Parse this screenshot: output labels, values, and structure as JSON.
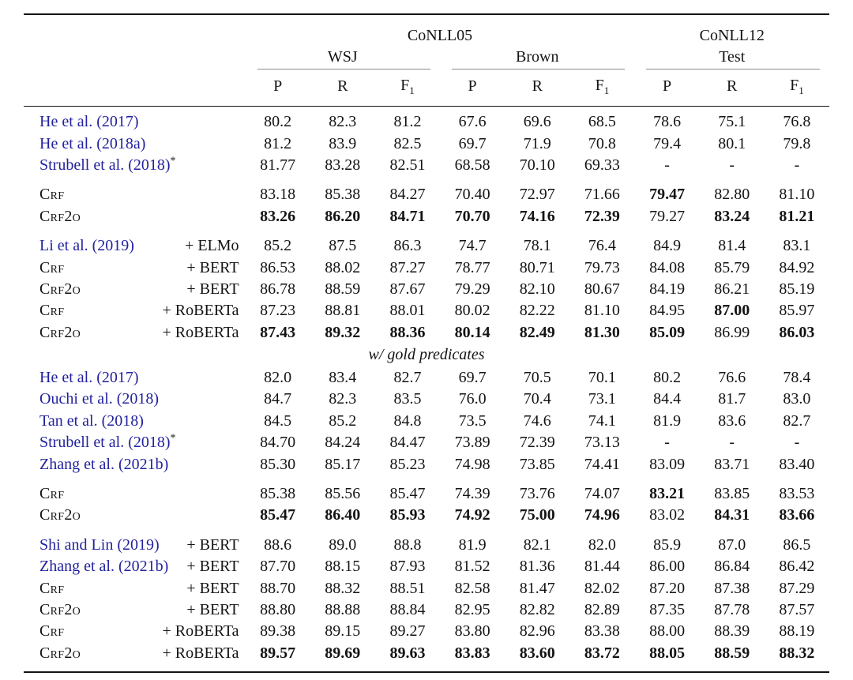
{
  "table": {
    "datasets": [
      "CoNLL05",
      "CoNLL12"
    ],
    "splits": [
      "WSJ",
      "Brown",
      "Test"
    ],
    "metrics": {
      "p": "P",
      "r": "R",
      "f": "F",
      "f_sub": "1"
    },
    "mid_header_label": "w/ gold predicates",
    "colors": {
      "citation_blue": "#22229f",
      "rule_black": "#141414",
      "cmidrule_gray": "#8c8c8c"
    },
    "rows": [
      {
        "kind": "data",
        "cite": "He et al. (2017)",
        "v": [
          "80.2",
          "82.3",
          "81.2",
          "67.6",
          "69.6",
          "68.5",
          "78.6",
          "75.1",
          "76.8"
        ]
      },
      {
        "kind": "data",
        "cite": "He et al. (2018a)",
        "v": [
          "81.2",
          "83.9",
          "82.5",
          "69.7",
          "71.9",
          "70.8",
          "79.4",
          "80.1",
          "79.8"
        ]
      },
      {
        "kind": "data",
        "cite": "Strubell et al. (2018)",
        "sup": "*",
        "v": [
          "81.77",
          "83.28",
          "82.51",
          "68.58",
          "70.10",
          "69.33",
          "-",
          "-",
          "-"
        ]
      },
      {
        "kind": "data",
        "gap": true,
        "model": "Crf",
        "v": [
          "83.18",
          "85.38",
          "84.27",
          "70.40",
          "72.97",
          "71.66",
          "79.47",
          "82.80",
          "81.10"
        ],
        "b": [
          0,
          0,
          0,
          0,
          0,
          0,
          1,
          0,
          0
        ]
      },
      {
        "kind": "data",
        "model": "Crf2o",
        "v": [
          "83.26",
          "86.20",
          "84.71",
          "70.70",
          "74.16",
          "72.39",
          "79.27",
          "83.24",
          "81.21"
        ],
        "b": [
          1,
          1,
          1,
          1,
          1,
          1,
          0,
          1,
          1
        ]
      },
      {
        "kind": "data",
        "gap": true,
        "cite": "Li et al. (2019)",
        "variant": "+ ELMo",
        "v": [
          "85.2",
          "87.5",
          "86.3",
          "74.7",
          "78.1",
          "76.4",
          "84.9",
          "81.4",
          "83.1"
        ]
      },
      {
        "kind": "data",
        "model": "Crf",
        "variant": "+ BERT",
        "v": [
          "86.53",
          "88.02",
          "87.27",
          "78.77",
          "80.71",
          "79.73",
          "84.08",
          "85.79",
          "84.92"
        ]
      },
      {
        "kind": "data",
        "model": "Crf2o",
        "variant": "+ BERT",
        "v": [
          "86.78",
          "88.59",
          "87.67",
          "79.29",
          "82.10",
          "80.67",
          "84.19",
          "86.21",
          "85.19"
        ]
      },
      {
        "kind": "data",
        "model": "Crf",
        "variant": "+ RoBERTa",
        "v": [
          "87.23",
          "88.81",
          "88.01",
          "80.02",
          "82.22",
          "81.10",
          "84.95",
          "87.00",
          "85.97"
        ],
        "b": [
          0,
          0,
          0,
          0,
          0,
          0,
          0,
          1,
          0
        ]
      },
      {
        "kind": "data",
        "model": "Crf2o",
        "variant": "+ RoBERTa",
        "v": [
          "87.43",
          "89.32",
          "88.36",
          "80.14",
          "82.49",
          "81.30",
          "85.09",
          "86.99",
          "86.03"
        ],
        "b": [
          1,
          1,
          1,
          1,
          1,
          1,
          1,
          0,
          1
        ]
      },
      {
        "kind": "mid",
        "label": "w/ gold predicates"
      },
      {
        "kind": "data",
        "cite": "He et al. (2017)",
        "v": [
          "82.0",
          "83.4",
          "82.7",
          "69.7",
          "70.5",
          "70.1",
          "80.2",
          "76.6",
          "78.4"
        ]
      },
      {
        "kind": "data",
        "cite": "Ouchi et al. (2018)",
        "v": [
          "84.7",
          "82.3",
          "83.5",
          "76.0",
          "70.4",
          "73.1",
          "84.4",
          "81.7",
          "83.0"
        ]
      },
      {
        "kind": "data",
        "cite": "Tan et al. (2018)",
        "v": [
          "84.5",
          "85.2",
          "84.8",
          "73.5",
          "74.6",
          "74.1",
          "81.9",
          "83.6",
          "82.7"
        ]
      },
      {
        "kind": "data",
        "cite": "Strubell et al. (2018)",
        "sup": "*",
        "v": [
          "84.70",
          "84.24",
          "84.47",
          "73.89",
          "72.39",
          "73.13",
          "-",
          "-",
          "-"
        ]
      },
      {
        "kind": "data",
        "cite": "Zhang et al. (2021b)",
        "v": [
          "85.30",
          "85.17",
          "85.23",
          "74.98",
          "73.85",
          "74.41",
          "83.09",
          "83.71",
          "83.40"
        ]
      },
      {
        "kind": "data",
        "gap": true,
        "model": "Crf",
        "v": [
          "85.38",
          "85.56",
          "85.47",
          "74.39",
          "73.76",
          "74.07",
          "83.21",
          "83.85",
          "83.53"
        ],
        "b": [
          0,
          0,
          0,
          0,
          0,
          0,
          1,
          0,
          0
        ]
      },
      {
        "kind": "data",
        "model": "Crf2o",
        "v": [
          "85.47",
          "86.40",
          "85.93",
          "74.92",
          "75.00",
          "74.96",
          "83.02",
          "84.31",
          "83.66"
        ],
        "b": [
          1,
          1,
          1,
          1,
          1,
          1,
          0,
          1,
          1
        ]
      },
      {
        "kind": "data",
        "gap": true,
        "cite": "Shi and Lin (2019)",
        "variant": "+ BERT",
        "v": [
          "88.6",
          "89.0",
          "88.8",
          "81.9",
          "82.1",
          "82.0",
          "85.9",
          "87.0",
          "86.5"
        ]
      },
      {
        "kind": "data",
        "cite": "Zhang et al. (2021b)",
        "variant": "+ BERT",
        "v": [
          "87.70",
          "88.15",
          "87.93",
          "81.52",
          "81.36",
          "81.44",
          "86.00",
          "86.84",
          "86.42"
        ]
      },
      {
        "kind": "data",
        "model": "Crf",
        "variant": "+ BERT",
        "v": [
          "88.70",
          "88.32",
          "88.51",
          "82.58",
          "81.47",
          "82.02",
          "87.20",
          "87.38",
          "87.29"
        ]
      },
      {
        "kind": "data",
        "model": "Crf2o",
        "variant": "+ BERT",
        "v": [
          "88.80",
          "88.88",
          "88.84",
          "82.95",
          "82.82",
          "82.89",
          "87.35",
          "87.78",
          "87.57"
        ]
      },
      {
        "kind": "data",
        "model": "Crf",
        "variant": "+ RoBERTa",
        "v": [
          "89.38",
          "89.15",
          "89.27",
          "83.80",
          "82.96",
          "83.38",
          "88.00",
          "88.39",
          "88.19"
        ]
      },
      {
        "kind": "data",
        "model": "Crf2o",
        "variant": "+ RoBERTa",
        "v": [
          "89.57",
          "89.69",
          "89.63",
          "83.83",
          "83.60",
          "83.72",
          "88.05",
          "88.59",
          "88.32"
        ],
        "b": [
          1,
          1,
          1,
          1,
          1,
          1,
          1,
          1,
          1
        ]
      }
    ]
  }
}
